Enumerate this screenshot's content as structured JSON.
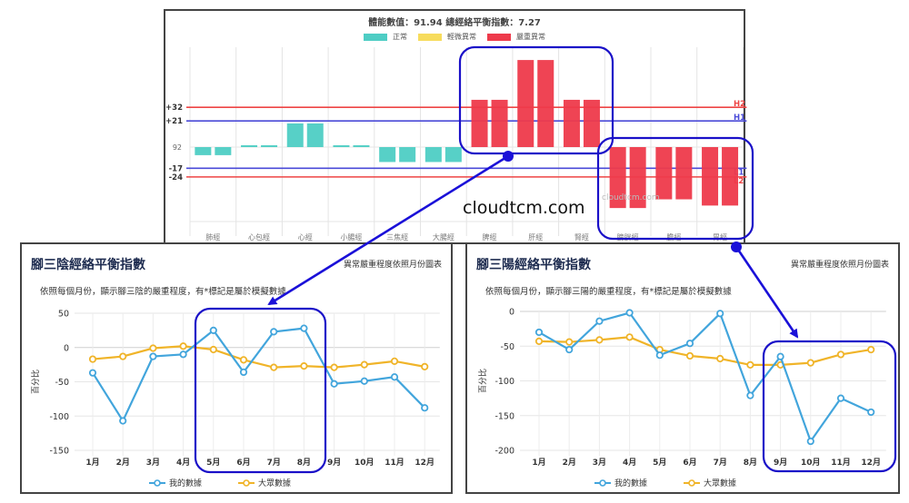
{
  "top_chart": {
    "title": "體能數值：91.94 總經絡平衡指數：7.27",
    "legend": [
      {
        "label": "正常",
        "color": "#4ecdc4"
      },
      {
        "label": "輕微異常",
        "color": "#f7dc5c"
      },
      {
        "label": "嚴重異常",
        "color": "#ee3a4b"
      }
    ],
    "baseline_label": "92",
    "thresholds": [
      {
        "label": "+32",
        "value": 32,
        "color": "#ee4444",
        "tag": "H2"
      },
      {
        "label": "+21",
        "value": 21,
        "color": "#4a4ad8",
        "tag": "H1"
      },
      {
        "label": "-17",
        "value": -17,
        "color": "#4a4ad8",
        "tag": "L1"
      },
      {
        "label": "-24",
        "value": -24,
        "color": "#ee4444",
        "tag": "L2"
      }
    ],
    "watermark_small": "cloudtcm.com"
  },
  "watermark": "cloudtcm.com",
  "left_panel": {
    "title": "腳三陰經絡平衡指數",
    "right_label": "異常嚴重程度依照月份圖表",
    "subtitle": "依照每個月份，顯示腳三陰的嚴重程度，有*標記是屬於模擬數據",
    "ylabel": "百分比",
    "legend": [
      {
        "label": "我的數據",
        "color": "#42a5dc"
      },
      {
        "label": "大眾數據",
        "color": "#f0b429"
      }
    ]
  },
  "right_panel": {
    "title": "腳三陽經絡平衡指數",
    "right_label": "異常嚴重程度依照月份圖表",
    "subtitle": "依照每個月份，顯示腳三陽的嚴重程度，有*標記是屬於模擬數據",
    "ylabel": "百分比",
    "legend": [
      {
        "label": "我的數據",
        "color": "#42a5dc"
      },
      {
        "label": "大眾數據",
        "color": "#f0b429"
      }
    ]
  },
  "chart_data": [
    {
      "type": "bar",
      "title": "體能數值：91.94 總經絡平衡指數：7.27",
      "categories": [
        "肺經",
        "心包經",
        "心經",
        "小腸經",
        "三焦經",
        "大腸經",
        "脾經",
        "肝經",
        "腎經",
        "膀胱經",
        "膽經",
        "胃經"
      ],
      "values": [
        -6.5,
        1.5,
        19,
        1.5,
        -12,
        -12,
        38,
        70,
        38,
        -49,
        -42,
        -47
      ],
      "colors": [
        "#4ecdc4",
        "#4ecdc4",
        "#4ecdc4",
        "#4ecdc4",
        "#4ecdc4",
        "#4ecdc4",
        "#ee3a4b",
        "#ee3a4b",
        "#ee3a4b",
        "#ee3a4b",
        "#ee3a4b",
        "#ee3a4b"
      ],
      "baseline": 92,
      "reference_lines": [
        32,
        21,
        -17,
        -24
      ],
      "legend": [
        "正常",
        "輕微異常",
        "嚴重異常"
      ],
      "grid": true
    },
    {
      "type": "line",
      "title": "腳三陰經絡平衡指數",
      "categories": [
        "1月",
        "2月",
        "3月",
        "4月",
        "5月",
        "6月",
        "7月",
        "8月",
        "9月",
        "10月",
        "11月",
        "12月"
      ],
      "series": [
        {
          "name": "我的數據",
          "values": [
            -37,
            -107,
            -13,
            -10,
            25,
            -36,
            23,
            28,
            -53,
            -49,
            -43,
            -88
          ]
        },
        {
          "name": "大眾數據",
          "values": [
            -17,
            -13,
            -1,
            2,
            -3,
            -18,
            -29,
            -27,
            -29,
            -25,
            -20,
            -28
          ]
        }
      ],
      "ylabel": "百分比",
      "yticks": [
        50,
        0,
        -50,
        -100,
        -150
      ],
      "ylim": [
        -150,
        50
      ],
      "grid": true,
      "legend_position": "bottom"
    },
    {
      "type": "line",
      "title": "腳三陽經絡平衡指數",
      "categories": [
        "1月",
        "2月",
        "3月",
        "4月",
        "5月",
        "6月",
        "7月",
        "8月",
        "9月",
        "10月",
        "11月",
        "12月"
      ],
      "series": [
        {
          "name": "我的數據",
          "values": [
            -30,
            -55,
            -14,
            -2,
            -63,
            -46,
            -3,
            -121,
            -65,
            -187,
            -125,
            -145
          ]
        },
        {
          "name": "大眾數據",
          "values": [
            -43,
            -44,
            -41,
            -37,
            -55,
            -64,
            -68,
            -77,
            -77,
            -74,
            -62,
            -55
          ]
        }
      ],
      "ylabel": "百分比",
      "yticks": [
        0,
        -50,
        -100,
        -150,
        -200
      ],
      "ylim": [
        -200,
        0
      ],
      "grid": true,
      "legend_position": "bottom"
    }
  ]
}
